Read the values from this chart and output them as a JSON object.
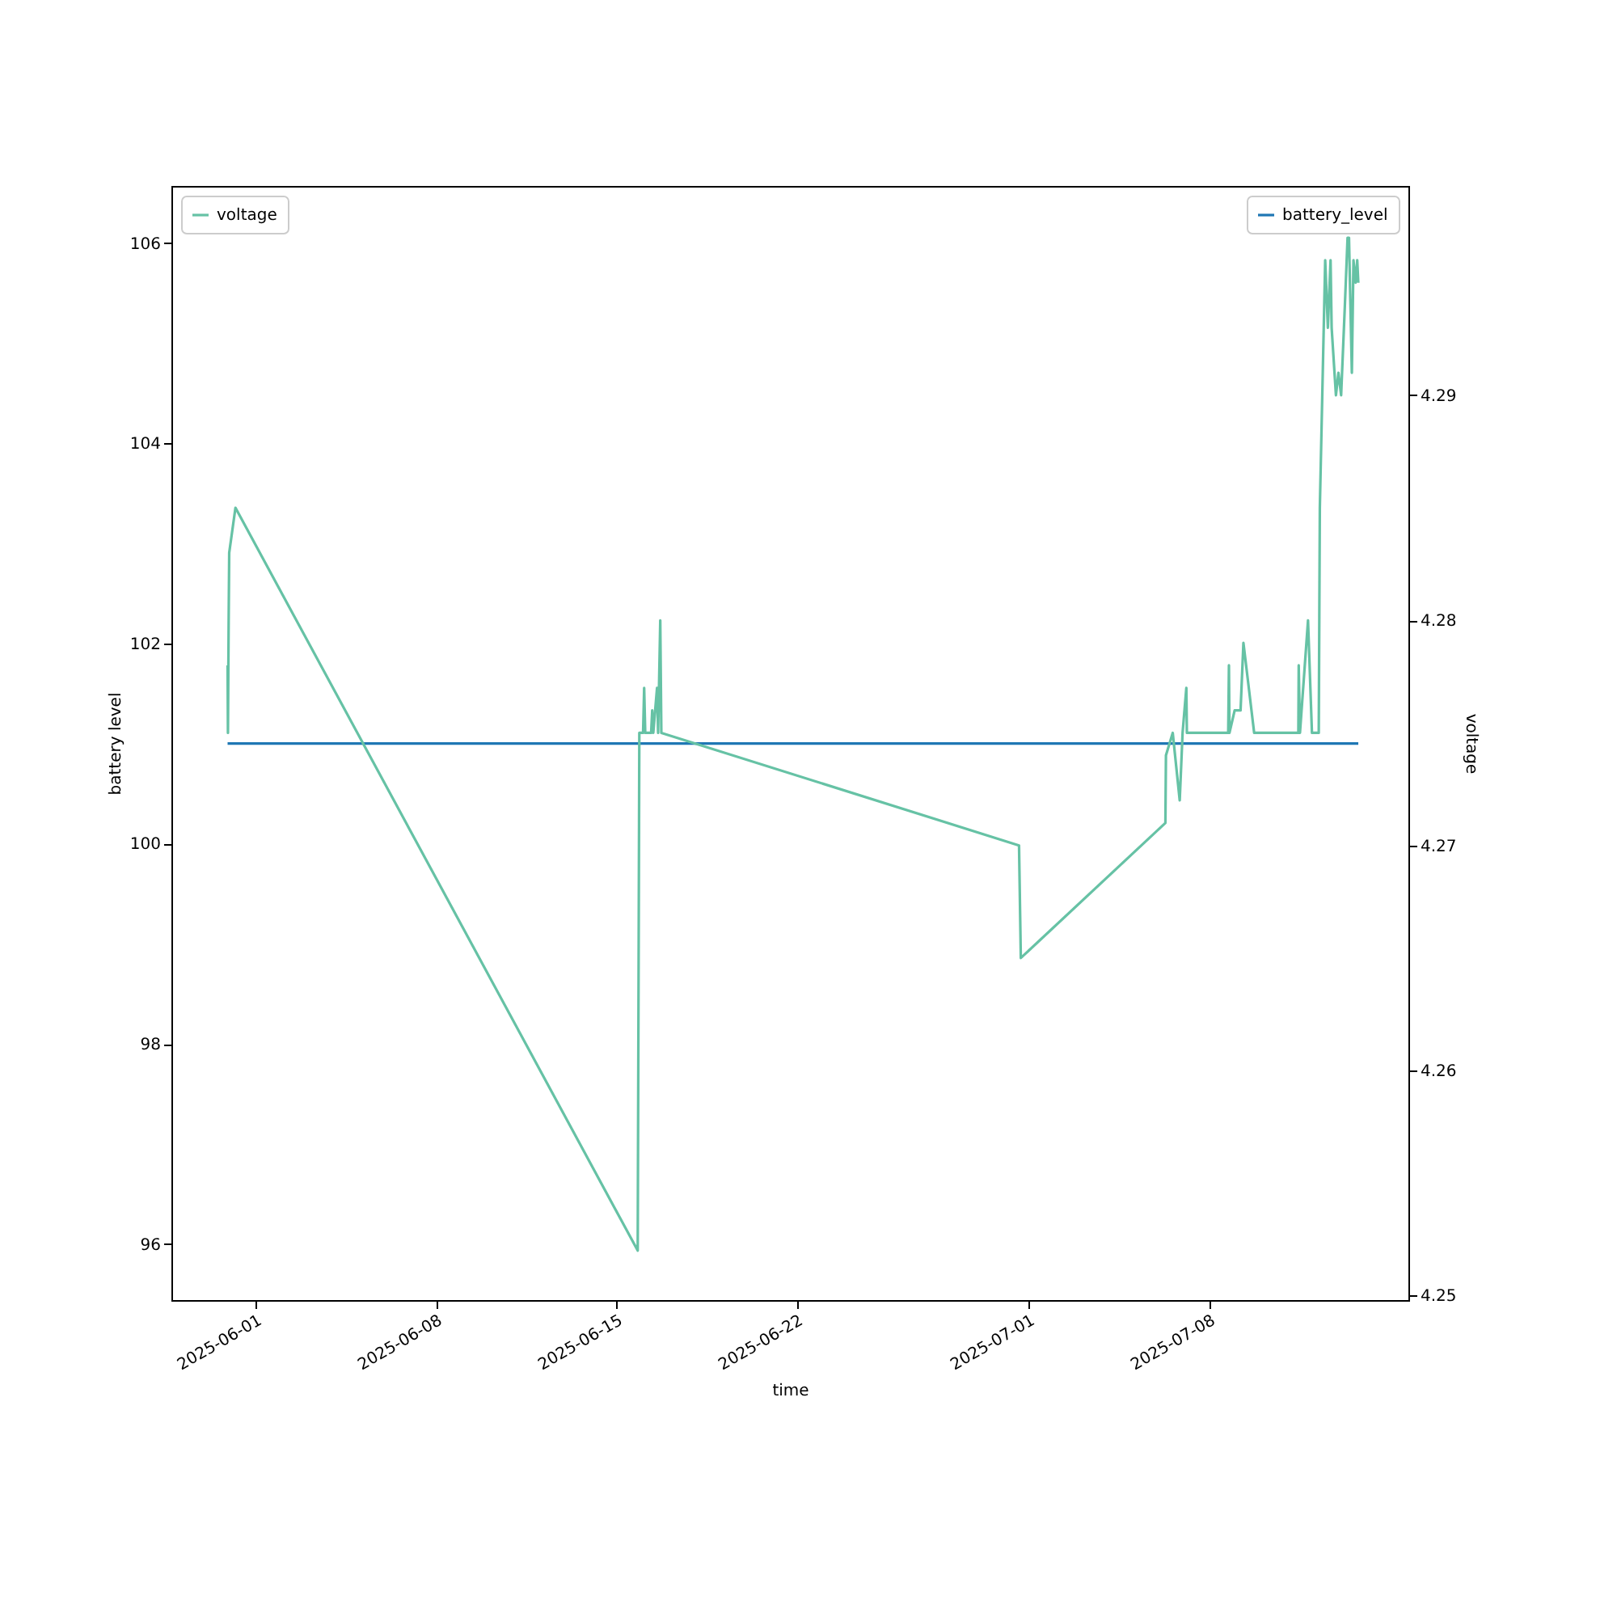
{
  "chart_data": {
    "type": "line",
    "xlabel": "time",
    "ylabel": "battery level",
    "y2label": "voltage",
    "xlim": [
      "2025-05-28T17:40",
      "2025-07-15T17:50"
    ],
    "xticks": [
      "2025-06-01",
      "2025-06-08",
      "2025-06-15",
      "2025-06-22",
      "2025-07-01",
      "2025-07-08"
    ],
    "ylim": [
      95.44,
      106.57
    ],
    "yticks": [
      96,
      98,
      100,
      102,
      104,
      106
    ],
    "y2lim": [
      4.2498,
      4.2993
    ],
    "y2ticks": [
      4.25,
      4.26,
      4.27,
      4.28,
      4.29
    ],
    "grid": false,
    "line_style": "solid",
    "marker": "none",
    "legend": "top right",
    "series": [
      {
        "name": "battery_level",
        "color": "#1f77b4",
        "x": [
          "2025-05-30T22:00",
          "2025-07-13T19:10"
        ],
        "values": [
          101,
          101
        ]
      },
      {
        "name": "voltage",
        "color": "#66c2a5",
        "axis": "y2",
        "x": [
          "2025-05-30T22:00",
          "2025-05-30T22:20",
          "2025-05-30T23:00",
          "2025-05-30T23:30",
          "2025-05-31T05:20",
          "2025-06-15T20:00",
          "2025-06-15T21:30",
          "2025-06-16T01:00",
          "2025-06-16T02:00",
          "2025-06-16T03:00",
          "2025-06-16T08:30",
          "2025-06-16T09:30",
          "2025-06-16T10:30",
          "2025-06-16T14:00",
          "2025-06-16T15:00",
          "2025-06-16T17:00",
          "2025-06-16T18:00",
          "2025-06-30T15:10",
          "2025-06-30T16:50",
          "2025-07-06T07:30",
          "2025-07-06T08:00",
          "2025-07-06T14:20",
          "2025-07-06T20:50",
          "2025-07-06T23:30",
          "2025-07-07T03:00",
          "2025-07-07T03:30",
          "2025-07-08T18:00",
          "2025-07-08T18:40",
          "2025-07-08T19:10",
          "2025-07-09T00:00",
          "2025-07-09T05:30",
          "2025-07-09T08:10",
          "2025-07-09T18:10",
          "2025-07-11T11:20",
          "2025-07-11T11:40",
          "2025-07-11T12:50",
          "2025-07-11T20:20",
          "2025-07-12T00:00",
          "2025-07-12T06:20",
          "2025-07-12T07:20",
          "2025-07-12T12:20",
          "2025-07-12T14:50",
          "2025-07-12T17:20",
          "2025-07-12T18:20",
          "2025-07-12T22:20",
          "2025-07-13T00:40",
          "2025-07-13T03:10",
          "2025-07-13T06:40",
          "2025-07-13T09:10",
          "2025-07-13T10:30",
          "2025-07-13T13:10",
          "2025-07-13T14:40",
          "2025-07-13T16:40",
          "2025-07-13T18:10",
          "2025-07-13T19:10"
        ],
        "values": [
          4.278,
          4.275,
          4.28,
          4.283,
          4.285,
          4.252,
          4.275,
          4.275,
          4.277,
          4.275,
          4.275,
          4.276,
          4.275,
          4.277,
          4.275,
          4.28,
          4.275,
          4.27,
          4.265,
          4.271,
          4.274,
          4.275,
          4.272,
          4.275,
          4.277,
          4.275,
          4.275,
          4.278,
          4.275,
          4.276,
          4.276,
          4.279,
          4.275,
          4.275,
          4.278,
          4.275,
          4.28,
          4.275,
          4.275,
          4.285,
          4.296,
          4.293,
          4.296,
          4.293,
          4.29,
          4.291,
          4.29,
          4.294,
          4.297,
          4.297,
          4.291,
          4.296,
          4.295,
          4.296,
          4.295
        ]
      }
    ]
  }
}
